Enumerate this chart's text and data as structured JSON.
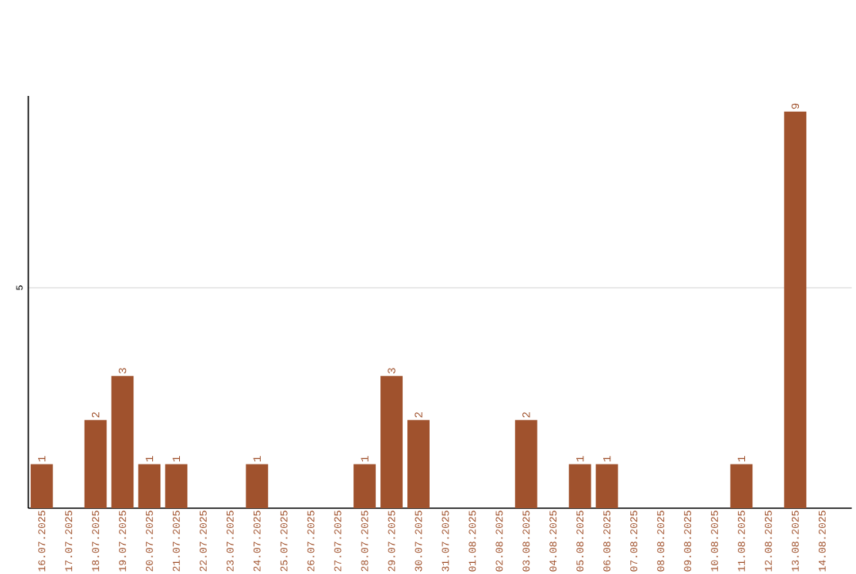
{
  "chart_data": {
    "type": "bar",
    "categories": [
      "16.07.2025",
      "17.07.2025",
      "18.07.2025",
      "19.07.2025",
      "20.07.2025",
      "21.07.2025",
      "22.07.2025",
      "23.07.2025",
      "24.07.2025",
      "25.07.2025",
      "26.07.2025",
      "27.07.2025",
      "28.07.2025",
      "29.07.2025",
      "30.07.2025",
      "31.07.2025",
      "01.08.2025",
      "02.08.2025",
      "03.08.2025",
      "04.08.2025",
      "05.08.2025",
      "06.08.2025",
      "07.08.2025",
      "08.08.2025",
      "09.08.2025",
      "10.08.2025",
      "11.08.2025",
      "12.08.2025",
      "13.08.2025",
      "14.08.2025"
    ],
    "values": [
      1,
      0,
      2,
      3,
      1,
      1,
      0,
      0,
      1,
      0,
      0,
      0,
      1,
      3,
      2,
      0,
      0,
      0,
      2,
      0,
      1,
      1,
      0,
      0,
      0,
      0,
      1,
      0,
      9,
      0
    ],
    "value_labels": [
      "1",
      null,
      "2",
      "3",
      "1",
      "1",
      null,
      null,
      "1",
      null,
      null,
      null,
      "1",
      "3",
      "2",
      null,
      null,
      null,
      "2",
      null,
      "1",
      "1",
      null,
      null,
      null,
      null,
      "1",
      null,
      "9",
      null
    ],
    "color": "#a0522d",
    "ylim": [
      0,
      9.35
    ],
    "yticks": [
      5
    ],
    "grid": "y"
  }
}
